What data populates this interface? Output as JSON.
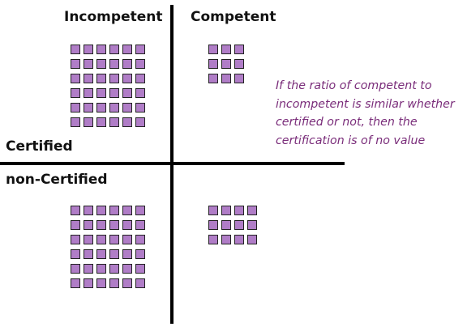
{
  "labels": {
    "incompetent": "Incompetent",
    "competent": "Competent",
    "certified": "Certified",
    "non_certified": "non-Certified"
  },
  "quadrants": {
    "certified_incompetent": {
      "rows": 6,
      "cols": 6,
      "count": 36
    },
    "certified_competent": {
      "rows": 3,
      "cols": 3,
      "count": 9
    },
    "non_certified_incompetent": {
      "rows": 6,
      "cols": 6,
      "count": 36
    },
    "non_certified_competent": {
      "rows": 3,
      "cols": 4,
      "count": 12
    }
  },
  "note": {
    "lines": [
      "If the ratio of competent to",
      "incompetent is similar whether",
      "certified or not, then the",
      "certification is of no value"
    ]
  },
  "colors": {
    "square_fill": "#b07dc7",
    "square_border": "#222222",
    "note_text": "#7a2d7a",
    "axes": "#000000"
  }
}
